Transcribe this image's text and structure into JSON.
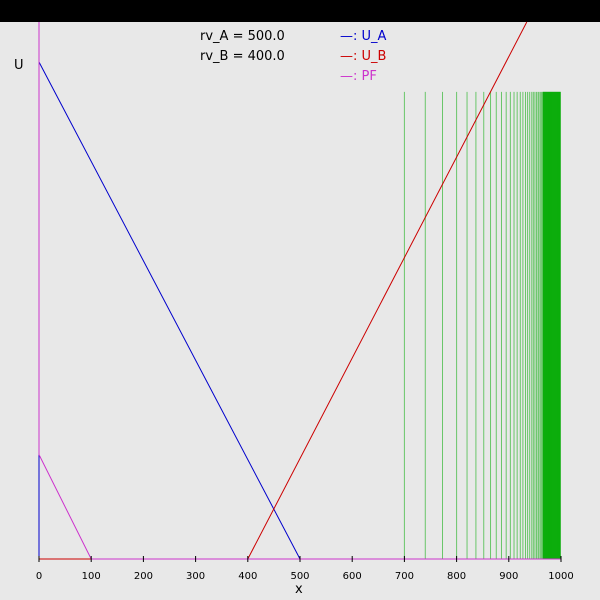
{
  "chart_data": {
    "type": "line",
    "xlabel": "x",
    "ylabel": "U",
    "xlim": [
      0,
      1000
    ],
    "xticks": [
      0,
      100,
      200,
      300,
      400,
      500,
      600,
      700,
      800,
      900,
      1000
    ],
    "params": [
      {
        "text": "rv_A = 500.0"
      },
      {
        "text": "rv_B = 400.0"
      }
    ],
    "series": [
      {
        "name": ": U_A",
        "color": "#0000cc",
        "x": [
          0,
          0,
          500,
          1000
        ],
        "y": [
          0,
          1.0,
          0,
          0
        ]
      },
      {
        "name": ": U_B",
        "color": "#cc0000",
        "x": [
          0,
          400,
          1000
        ],
        "y": [
          0,
          0,
          1.213
        ]
      },
      {
        "name": ": PF",
        "color": "#cc33cc",
        "x": [
          0,
          0,
          100,
          1000
        ],
        "y": [
          1.12,
          0.21,
          0,
          0
        ]
      }
    ],
    "vlines_color": "#00aa00",
    "vlines_x": [
      700,
      740,
      773,
      800,
      820,
      837,
      852,
      865,
      876,
      886,
      895,
      903,
      910,
      916,
      922,
      927,
      932,
      936,
      940,
      944,
      947,
      950,
      953,
      956,
      958,
      961,
      963,
      965,
      967,
      969,
      971,
      973,
      975,
      977,
      979,
      981,
      983,
      985,
      987,
      989,
      991,
      993,
      995,
      997,
      999
    ],
    "vlines_y": [
      0,
      0.94
    ]
  }
}
